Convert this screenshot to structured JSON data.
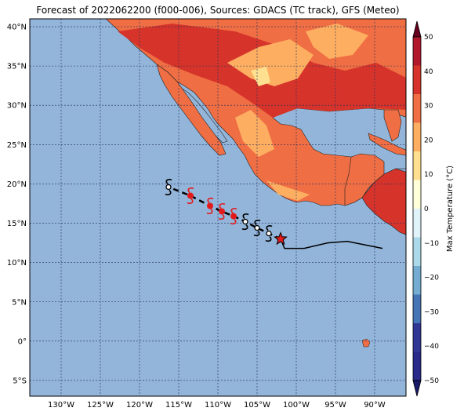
{
  "title": "Forecast of 2022062200 (f000-006), Sources: GDACS (TC track), GFS (Meteo)",
  "map": {
    "lon_range": [
      -134,
      -86
    ],
    "lat_range": [
      -7,
      41
    ],
    "lat_ticks": [
      {
        "value": 40,
        "label": "40°N"
      },
      {
        "value": 35,
        "label": "35°N"
      },
      {
        "value": 30,
        "label": "30°N"
      },
      {
        "value": 25,
        "label": "25°N"
      },
      {
        "value": 20,
        "label": "20°N"
      },
      {
        "value": 15,
        "label": "15°N"
      },
      {
        "value": 10,
        "label": "10°N"
      },
      {
        "value": 5,
        "label": "5°N"
      },
      {
        "value": 0,
        "label": "0°"
      },
      {
        "value": -5,
        "label": "5°S"
      }
    ],
    "lon_ticks": [
      {
        "value": -130,
        "label": "130°W"
      },
      {
        "value": -125,
        "label": "125°W"
      },
      {
        "value": -120,
        "label": "120°W"
      },
      {
        "value": -115,
        "label": "115°W"
      },
      {
        "value": -110,
        "label": "110°W"
      },
      {
        "value": -105,
        "label": "105°W"
      },
      {
        "value": -100,
        "label": "100°W"
      },
      {
        "value": -95,
        "label": "95°W"
      },
      {
        "value": -90,
        "label": "90°W"
      }
    ],
    "colors": {
      "ocean": "#93b5da",
      "land_hot": "#d6342a",
      "land_mid": "#f06e43",
      "land_warm": "#fdae61",
      "land_mild": "#fee090",
      "grid": "#1f2f5f"
    }
  },
  "track": {
    "past": [
      [
        -101.5,
        11.8
      ],
      [
        -99,
        11.8
      ],
      [
        -96,
        12.5
      ],
      [
        -93.5,
        12.7
      ],
      [
        -91,
        12.2
      ],
      [
        -89,
        11.8
      ]
    ],
    "current": [
      -102,
      13
    ],
    "forecast": [
      {
        "lon": -103.5,
        "lat": 13.7,
        "kind": "storm",
        "color": "#000000"
      },
      {
        "lon": -105,
        "lat": 14.4,
        "kind": "storm",
        "color": "#000000"
      },
      {
        "lon": -106.5,
        "lat": 15.2,
        "kind": "storm",
        "color": "#000000"
      },
      {
        "lon": -108,
        "lat": 15.9,
        "kind": "hurricane",
        "color": "#e31a1c"
      },
      {
        "lon": -109.5,
        "lat": 16.5,
        "kind": "hurricane",
        "color": "#e31a1c"
      },
      {
        "lon": -111,
        "lat": 17.2,
        "kind": "hurricane",
        "color": "#e31a1c"
      },
      {
        "lon": -113.5,
        "lat": 18.5,
        "kind": "hurricane",
        "color": "#e31a1c"
      },
      {
        "lon": -116.3,
        "lat": 19.6,
        "kind": "storm",
        "color": "#000000"
      }
    ]
  },
  "colorbar": {
    "label": "Max Temperature (°C)",
    "ticks": [
      "50",
      "40",
      "30",
      "20",
      "10",
      "0",
      "−10",
      "−20",
      "−30",
      "−40",
      "−50"
    ],
    "colors": [
      "#67001f",
      "#b2182b",
      "#d6342a",
      "#f06e43",
      "#fdae61",
      "#fee090",
      "#ffffd9",
      "#e0f3f8",
      "#abd9e9",
      "#74add1",
      "#4575b4",
      "#313695",
      "#2a2a8a",
      "#1a1a6a"
    ]
  }
}
